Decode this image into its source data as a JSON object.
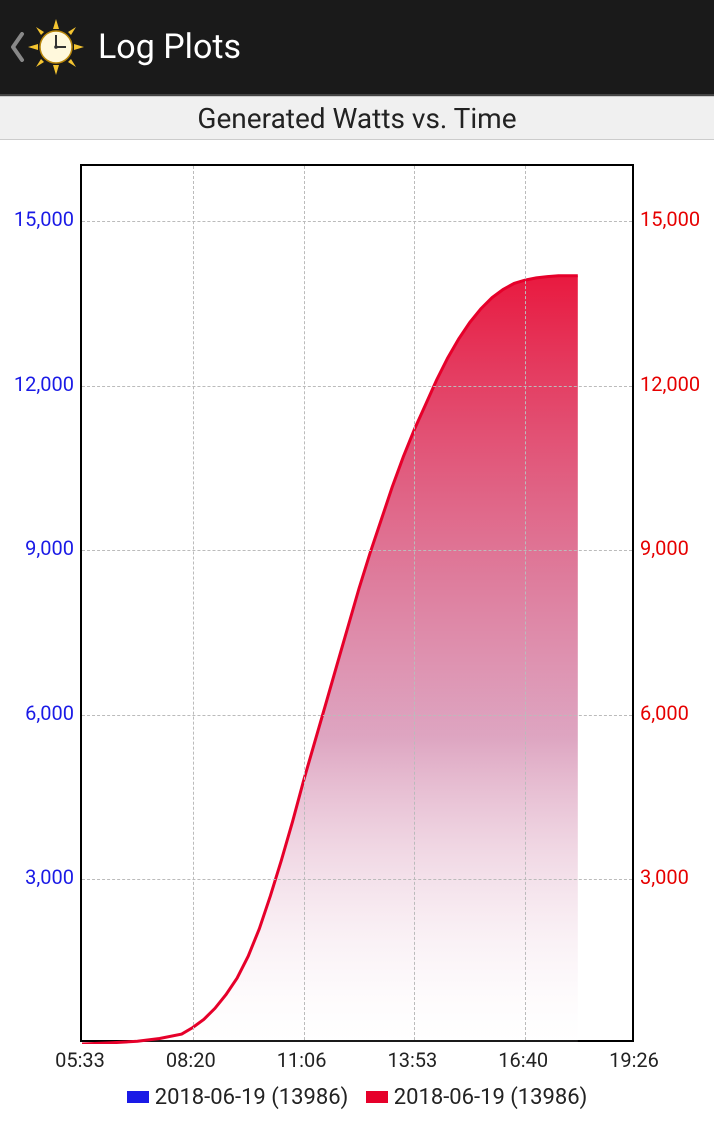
{
  "header": {
    "title": "Log Plots",
    "icon_name": "sun-clock-icon"
  },
  "chart": {
    "title": "Generated Watts vs. Time",
    "type": "area",
    "background_color": "#ffffff",
    "grid_color": "#bbbbbb",
    "border_color": "#000000",
    "left_axis_color": "#1a1ae6",
    "right_axis_color": "#e60000",
    "line_color": "#e6002a",
    "line_width": 3,
    "fill_top_color": "#e6002a",
    "fill_bottom_color": "#ffffff",
    "xlim": [
      "05:33",
      "19:26"
    ],
    "ylim": [
      0,
      16000
    ],
    "y_ticks": [
      3000,
      6000,
      9000,
      12000,
      15000
    ],
    "y_tick_labels": [
      "3,000",
      "6,000",
      "9,000",
      "12,000",
      "15,000"
    ],
    "x_ticks": [
      "05:33",
      "08:20",
      "11:06",
      "13:53",
      "16:40",
      "19:26"
    ],
    "series": {
      "x": [
        0.0,
        0.05,
        0.1,
        0.14,
        0.18,
        0.2,
        0.22,
        0.24,
        0.26,
        0.28,
        0.3,
        0.32,
        0.34,
        0.36,
        0.38,
        0.4,
        0.42,
        0.44,
        0.46,
        0.48,
        0.5,
        0.52,
        0.54,
        0.56,
        0.58,
        0.6,
        0.62,
        0.64,
        0.66,
        0.68,
        0.7,
        0.72,
        0.74,
        0.76,
        0.78,
        0.8,
        0.82,
        0.84,
        0.86,
        0.88,
        0.895
      ],
      "y": [
        0,
        20,
        50,
        100,
        180,
        300,
        450,
        650,
        900,
        1200,
        1600,
        2100,
        2700,
        3350,
        4050,
        4800,
        5500,
        6200,
        6900,
        7600,
        8300,
        8950,
        9550,
        10150,
        10700,
        11200,
        11650,
        12100,
        12500,
        12850,
        13150,
        13400,
        13600,
        13750,
        13860,
        13920,
        13960,
        13985,
        14000,
        14000,
        14000
      ]
    },
    "label_fontsize": 20,
    "title_fontsize": 28
  },
  "legend": {
    "items": [
      {
        "color": "#1a1ae6",
        "label": "2018-06-19 (13986)"
      },
      {
        "color": "#e6002a",
        "label": "2018-06-19 (13986)"
      }
    ]
  }
}
